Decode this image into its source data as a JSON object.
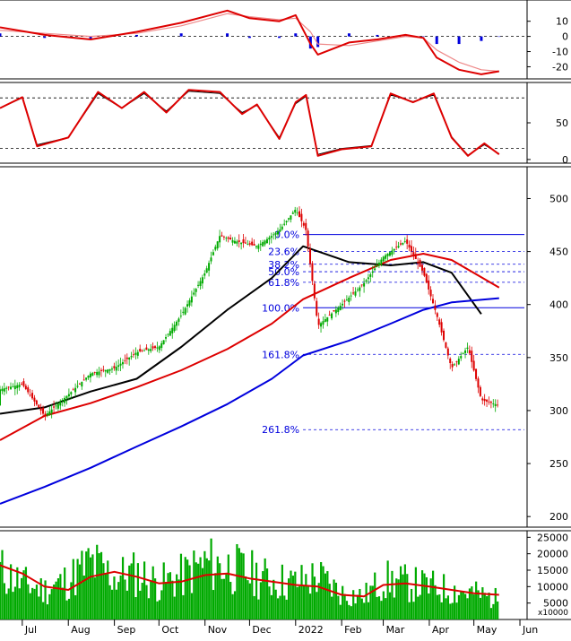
{
  "chart_data": [
    {
      "type": "line",
      "panel": "macd",
      "y_ticks": [
        10,
        0,
        -10,
        -20
      ],
      "ylim": [
        -28,
        24
      ],
      "x": [
        "2021-06-20",
        "2021-07-20",
        "2021-08-20",
        "2021-09-20",
        "2021-10-20",
        "2021-11-20",
        "2021-12-05",
        "2021-12-25",
        "2022-01-05",
        "2022-01-15",
        "2022-01-20",
        "2022-02-10",
        "2022-03-01",
        "2022-03-20",
        "2022-04-01",
        "2022-04-10",
        "2022-04-25",
        "2022-05-10",
        "2022-05-22"
      ],
      "series": [
        {
          "color": "#dd0000",
          "values": [
            6,
            1,
            -2,
            3,
            9,
            17,
            12,
            10,
            14,
            -5,
            -12,
            -4,
            -2,
            1,
            -1,
            -14,
            -22,
            -25,
            -23
          ]
        },
        {
          "color": "#ee8888",
          "values": [
            4,
            2,
            0,
            2,
            7,
            15,
            13,
            11,
            12,
            3,
            -5,
            -6,
            -3,
            0,
            -1,
            -9,
            -17,
            -22,
            -23
          ]
        }
      ],
      "histogram": {
        "color": "#0000dd",
        "x": [
          "2021-06-20",
          "2021-07-20",
          "2021-08-20",
          "2021-09-20",
          "2021-10-20",
          "2021-11-20",
          "2021-12-05",
          "2021-12-25",
          "2022-01-05",
          "2022-01-15",
          "2022-01-20",
          "2022-02-10",
          "2022-03-01",
          "2022-03-20",
          "2022-04-01",
          "2022-04-10",
          "2022-04-25",
          "2022-05-10",
          "2022-05-22"
        ],
        "values": [
          2,
          -1,
          -2,
          1,
          2,
          2,
          -1,
          -1,
          2,
          -8,
          -7,
          2,
          1,
          1,
          0,
          -5,
          -5,
          -3,
          0
        ]
      }
    },
    {
      "type": "line",
      "panel": "rsi",
      "y_ticks": [
        50,
        0
      ],
      "ylim": [
        -5,
        105
      ],
      "reference_lines": [
        84,
        15
      ],
      "x": [
        "2021-06-20",
        "2021-07-05",
        "2021-07-15",
        "2021-08-05",
        "2021-08-25",
        "2021-09-10",
        "2021-09-25",
        "2021-10-10",
        "2021-10-25",
        "2021-11-15",
        "2021-11-30",
        "2021-12-10",
        "2021-12-25",
        "2022-01-05",
        "2022-01-12",
        "2022-01-20",
        "2022-02-05",
        "2022-02-25",
        "2022-03-10",
        "2022-03-25",
        "2022-04-08",
        "2022-04-20",
        "2022-05-01",
        "2022-05-12",
        "2022-05-22"
      ],
      "series": [
        {
          "color": "#dd0000",
          "values": [
            70,
            85,
            18,
            30,
            92,
            70,
            92,
            64,
            95,
            92,
            62,
            75,
            28,
            78,
            88,
            5,
            14,
            18,
            90,
            78,
            90,
            30,
            5,
            22,
            7
          ]
        },
        {
          "color": "#000000",
          "values": [
            70,
            84,
            20,
            30,
            90,
            70,
            90,
            66,
            93,
            90,
            64,
            74,
            30,
            76,
            86,
            7,
            15,
            19,
            88,
            79,
            88,
            31,
            6,
            20,
            8
          ]
        }
      ]
    },
    {
      "type": "line",
      "panel": "price",
      "y_ticks": [
        500,
        450,
        400,
        350,
        300,
        250,
        200
      ],
      "ylim": [
        190,
        530
      ],
      "candles": {
        "up_color": "#00aa00",
        "down_color": "#dd0000",
        "x": [
          "2021-06-20",
          "2021-07-05",
          "2021-07-20",
          "2021-08-05",
          "2021-08-20",
          "2021-09-05",
          "2021-09-20",
          "2021-10-05",
          "2021-10-20",
          "2021-11-05",
          "2021-11-15",
          "2021-11-25",
          "2021-12-10",
          "2021-12-25",
          "2022-01-05",
          "2022-01-12",
          "2022-01-20",
          "2022-02-05",
          "2022-02-20",
          "2022-03-05",
          "2022-03-20",
          "2022-04-01",
          "2022-04-10",
          "2022-04-20",
          "2022-05-01",
          "2022-05-10",
          "2022-05-22"
        ],
        "close": [
          320,
          325,
          295,
          315,
          335,
          340,
          355,
          360,
          390,
          430,
          465,
          460,
          455,
          470,
          490,
          470,
          380,
          400,
          420,
          445,
          460,
          430,
          390,
          340,
          360,
          310,
          305
        ]
      },
      "series": [
        {
          "color": "#000000",
          "x": [
            "2021-06-20",
            "2021-07-20",
            "2021-08-20",
            "2021-09-20",
            "2021-10-20",
            "2021-11-20",
            "2021-12-20",
            "2022-01-10",
            "2022-02-10",
            "2022-03-10",
            "2022-04-01",
            "2022-04-20",
            "2022-05-10"
          ],
          "values": [
            297,
            303,
            318,
            330,
            360,
            395,
            425,
            455,
            440,
            437,
            440,
            430,
            391
          ]
        },
        {
          "color": "#dd0000",
          "x": [
            "2021-06-20",
            "2021-07-20",
            "2021-08-20",
            "2021-09-20",
            "2021-10-20",
            "2021-11-20",
            "2021-12-20",
            "2022-01-10",
            "2022-02-10",
            "2022-03-10",
            "2022-04-01",
            "2022-04-20",
            "2022-05-22"
          ],
          "values": [
            272,
            295,
            307,
            322,
            338,
            358,
            382,
            405,
            425,
            442,
            448,
            442,
            416
          ]
        },
        {
          "color": "#0000dd",
          "x": [
            "2021-06-20",
            "2021-07-20",
            "2021-08-20",
            "2021-09-20",
            "2021-10-20",
            "2021-11-20",
            "2021-12-20",
            "2022-01-10",
            "2022-02-10",
            "2022-03-10",
            "2022-04-01",
            "2022-04-20",
            "2022-05-22"
          ],
          "values": [
            212,
            228,
            246,
            266,
            285,
            306,
            330,
            352,
            366,
            382,
            395,
            402,
            406
          ]
        }
      ],
      "fib_levels": [
        {
          "label": "0.0%",
          "value": 466
        },
        {
          "label": "23.6%",
          "value": 450
        },
        {
          "label": "38.2%",
          "value": 438
        },
        {
          "label": "50.0%",
          "value": 431
        },
        {
          "label": "61.8%",
          "value": 421
        },
        {
          "label": "100.0%",
          "value": 397
        },
        {
          "label": "161.8%",
          "value": 353
        },
        {
          "label": "261.8%",
          "value": 282
        }
      ]
    },
    {
      "type": "bar",
      "panel": "volume",
      "y_ticks": [
        25000,
        20000,
        15000,
        10000,
        5000
      ],
      "ylim": [
        0,
        27000
      ],
      "unit_label": "x10000",
      "bar_color": "#00aa00",
      "x": [
        "2021-06-20",
        "2021-07-05",
        "2021-07-20",
        "2021-08-05",
        "2021-08-20",
        "2021-09-05",
        "2021-09-20",
        "2021-10-05",
        "2021-10-20",
        "2021-11-05",
        "2021-11-20",
        "2021-12-05",
        "2021-12-20",
        "2022-01-05",
        "2022-01-20",
        "2022-02-05",
        "2022-02-20",
        "2022-03-05",
        "2022-03-20",
        "2022-04-05",
        "2022-04-20",
        "2022-05-05",
        "2022-05-22"
      ],
      "values": [
        15000,
        11000,
        9000,
        12000,
        17000,
        13000,
        14000,
        11000,
        13000,
        17000,
        16000,
        14000,
        12000,
        11000,
        13000,
        8000,
        7000,
        12000,
        11000,
        10000,
        9000,
        8000,
        6000
      ],
      "series": [
        {
          "color": "#dd0000",
          "values": [
            16500,
            14000,
            10000,
            9000,
            13000,
            14500,
            13000,
            11000,
            11500,
            13500,
            14000,
            12500,
            11500,
            10500,
            10000,
            7500,
            7000,
            10500,
            11000,
            10000,
            9000,
            8000,
            7500
          ]
        }
      ]
    }
  ],
  "x_axis": {
    "labels": [
      {
        "text": "Jul",
        "date": "2021-07-05"
      },
      {
        "text": "Aug",
        "date": "2021-08-05"
      },
      {
        "text": "Sep",
        "date": "2021-09-05"
      },
      {
        "text": "Oct",
        "date": "2021-10-05"
      },
      {
        "text": "Nov",
        "date": "2021-11-05"
      },
      {
        "text": "Dec",
        "date": "2021-12-05"
      },
      {
        "text": "2022",
        "date": "2022-01-05"
      },
      {
        "text": "Feb",
        "date": "2022-02-05"
      },
      {
        "text": "Mar",
        "date": "2022-03-05"
      },
      {
        "text": "Apr",
        "date": "2022-04-05"
      },
      {
        "text": "May",
        "date": "2022-05-05"
      },
      {
        "text": "Jun",
        "date": "2022-06-05"
      }
    ]
  },
  "colors": {
    "up": "#00aa00",
    "down": "#dd0000",
    "ma_black": "#000000",
    "ma_red": "#dd0000",
    "ma_blue": "#0000dd",
    "fib": "#0000dd"
  }
}
